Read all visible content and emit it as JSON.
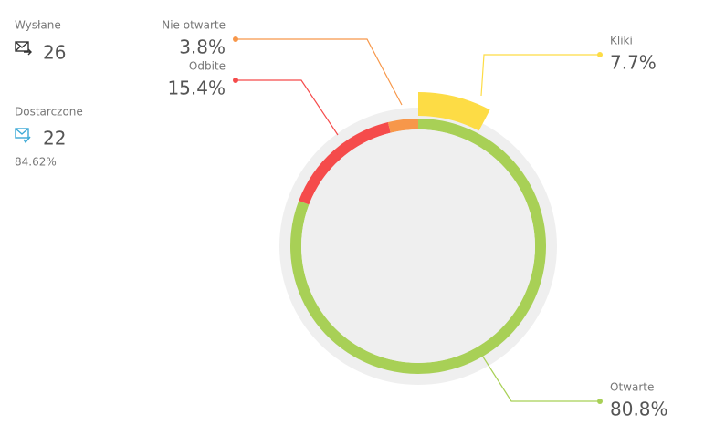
{
  "stats": [
    {
      "label": "Wysłane",
      "value": 26
    },
    {
      "label": "Dostarczone",
      "value": 22,
      "percent": "84.62%"
    }
  ],
  "chart_data": {
    "type": "donut",
    "categories": [
      "Otwarte",
      "Odbite",
      "Nie otwarte"
    ],
    "values": [
      80.8,
      15.4,
      3.8
    ],
    "value_labels": [
      "80.8%",
      "15.4%",
      "3.8%"
    ],
    "colors": [
      "#a8d056",
      "#f54b4b",
      "#f7974a"
    ],
    "overlay": {
      "name": "Kliki",
      "value": 7.7,
      "value_label": "7.7%",
      "color": "#fddc45"
    }
  }
}
